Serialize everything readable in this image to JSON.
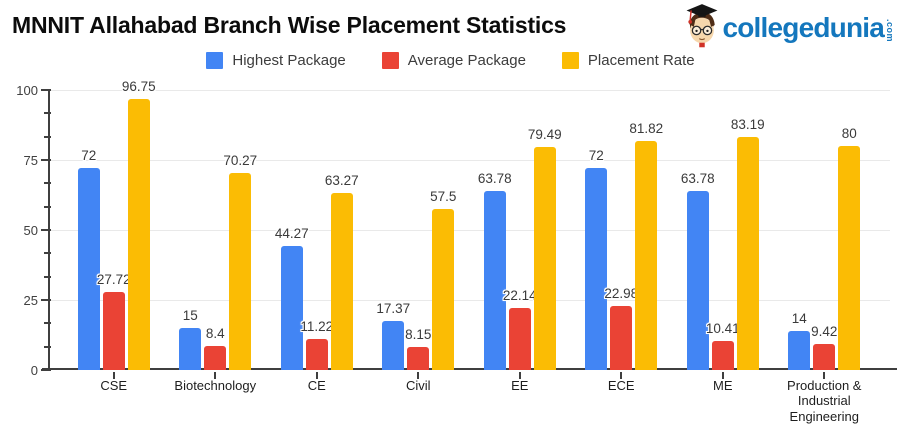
{
  "logo": {
    "text": "collegedunia",
    "tld": ".com"
  },
  "chart_data": {
    "type": "bar",
    "title": "MNNIT Allahabad Branch Wise Placement Statistics",
    "categories": [
      "CSE",
      "Biotechnology",
      "CE",
      "Civil",
      "EE",
      "ECE",
      "ME",
      "Production & Industrial Engineering"
    ],
    "series": [
      {
        "name": "Highest Package",
        "color": "#4285F4",
        "values": [
          72,
          15,
          44.27,
          17.37,
          63.78,
          72,
          63.78,
          14
        ]
      },
      {
        "name": "Average Package",
        "color": "#EA4335",
        "values": [
          27.72,
          8.4,
          11.22,
          8.15,
          22.14,
          22.98,
          10.41,
          9.42
        ]
      },
      {
        "name": "Placement Rate",
        "color": "#FBBC04",
        "texture": "dots",
        "values": [
          96.75,
          70.27,
          63.27,
          57.5,
          79.49,
          81.82,
          83.19,
          80
        ]
      }
    ],
    "ylim": [
      0,
      100
    ],
    "yticks": [
      0,
      25,
      50,
      75,
      100
    ],
    "minor_ticks_per_interval": 2,
    "grid": true,
    "legend_position": "top",
    "data_labels": true
  },
  "colors": {
    "axis": "#3f3f3f",
    "gridline": "#e9e9e9",
    "data_label": "#3a3a3a",
    "brand_blue": "#1477bd"
  }
}
